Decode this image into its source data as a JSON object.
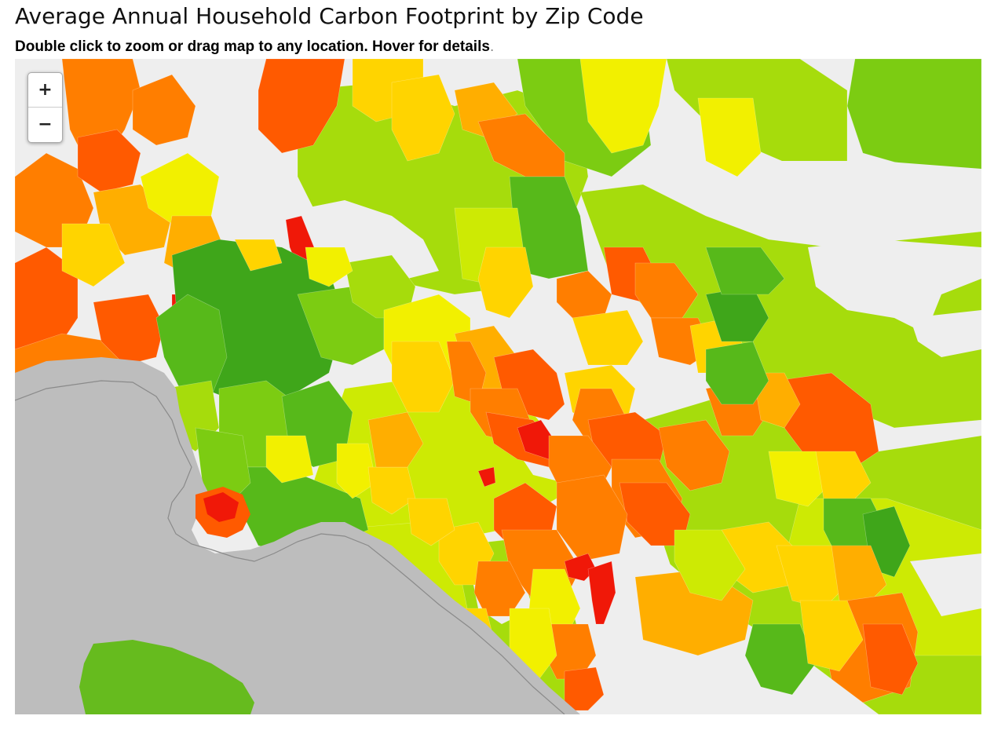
{
  "header": {
    "title": "Average Annual Household Carbon Footprint by Zip Code",
    "subtitle": "Double click to zoom or drag map to any location. Hover for details",
    "subtitle_end": "."
  },
  "map": {
    "zoom_in_label": "+",
    "zoom_out_label": "−",
    "colors": {
      "background": "#eeeeee",
      "water": "#bdbdbd",
      "coastline": "#8a8a8a",
      "island": "#66bb1e",
      "dark_green": "#3fa61a",
      "green": "#57b91a",
      "mid_green": "#7ccc12",
      "light_green": "#a6dc0c",
      "yellow_green": "#cdea04",
      "yellow": "#f2f000",
      "gold": "#ffd400",
      "orange_yellow": "#ffae00",
      "orange": "#ff7e00",
      "dark_orange": "#ff5a00",
      "red": "#f01808"
    }
  }
}
